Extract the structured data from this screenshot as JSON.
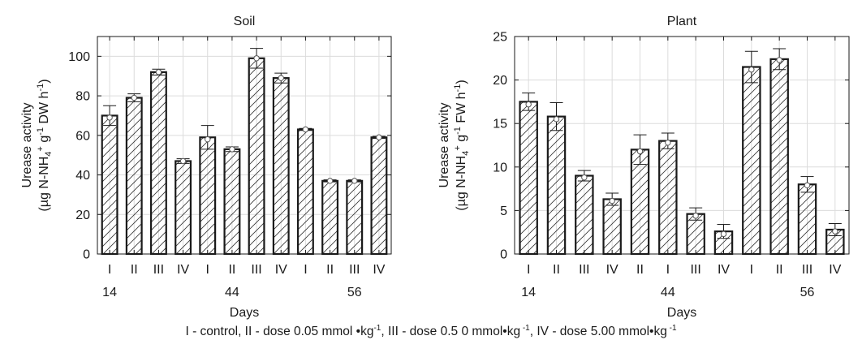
{
  "chart_data": [
    {
      "type": "bar",
      "title": "Soil",
      "xlabel": "Days",
      "ylabel_line1": "Urease activity",
      "ylabel_line2_parts": [
        "(µg N-NH",
        "4",
        "+",
        " g",
        "-1",
        " DW h",
        "-1",
        ")"
      ],
      "ylim": [
        0,
        110
      ],
      "yticks": [
        0,
        20,
        40,
        60,
        80,
        100
      ],
      "grid": true,
      "categories": [
        "I",
        "II",
        "III",
        "IV",
        "I",
        "II",
        "III",
        "IV",
        "I",
        "II",
        "III",
        "IV"
      ],
      "group_labels": [
        {
          "label": "14",
          "at_bar": 0
        },
        {
          "label": "44",
          "at_bar": 5
        },
        {
          "label": "56",
          "at_bar": 10
        }
      ],
      "values": [
        70,
        79,
        92,
        47,
        59,
        53,
        99,
        89,
        63,
        37,
        37,
        59
      ],
      "errors": [
        5,
        2,
        1.5,
        1.2,
        6,
        1.2,
        5,
        2.5,
        0.5,
        0.5,
        0.5,
        0.5
      ],
      "markers": [
        69,
        79,
        92,
        47,
        58,
        53,
        99,
        89,
        63,
        37,
        37,
        59
      ]
    },
    {
      "type": "bar",
      "title": "Plant",
      "xlabel": "Days",
      "ylabel_line1": "Urease activity",
      "ylabel_line2_parts": [
        "(µg N-NH",
        "4",
        "+",
        " g",
        "-1",
        " FW h",
        "-1",
        ")"
      ],
      "ylim": [
        0,
        25
      ],
      "yticks": [
        0,
        5,
        10,
        15,
        20,
        25
      ],
      "grid": true,
      "categories": [
        "I",
        "II",
        "III",
        "IV",
        "II",
        "I",
        "III",
        "IV",
        "I",
        "II",
        "III",
        "IV"
      ],
      "group_labels": [
        {
          "label": "14",
          "at_bar": 0
        },
        {
          "label": "44",
          "at_bar": 5
        },
        {
          "label": "56",
          "at_bar": 10
        }
      ],
      "values": [
        17.5,
        15.8,
        9.0,
        6.3,
        12.0,
        13.0,
        4.6,
        2.6,
        21.5,
        22.4,
        8.0,
        2.8
      ],
      "errors": [
        1.0,
        1.6,
        0.6,
        0.7,
        1.7,
        0.9,
        0.7,
        0.8,
        1.8,
        1.2,
        0.9,
        0.7
      ],
      "markers": [
        17.2,
        15.5,
        8.8,
        6.1,
        11.8,
        12.8,
        4.4,
        2.3,
        21.2,
        22.3,
        7.9,
        2.6
      ]
    }
  ],
  "caption": {
    "parts": [
      "I - control, II - dose 0.05 mmol  •kg",
      "-1",
      ", III - dose 0.5   0 mmol•kg",
      " -1",
      ", IV - dose 5.00  mmol•kg",
      " -1"
    ]
  }
}
